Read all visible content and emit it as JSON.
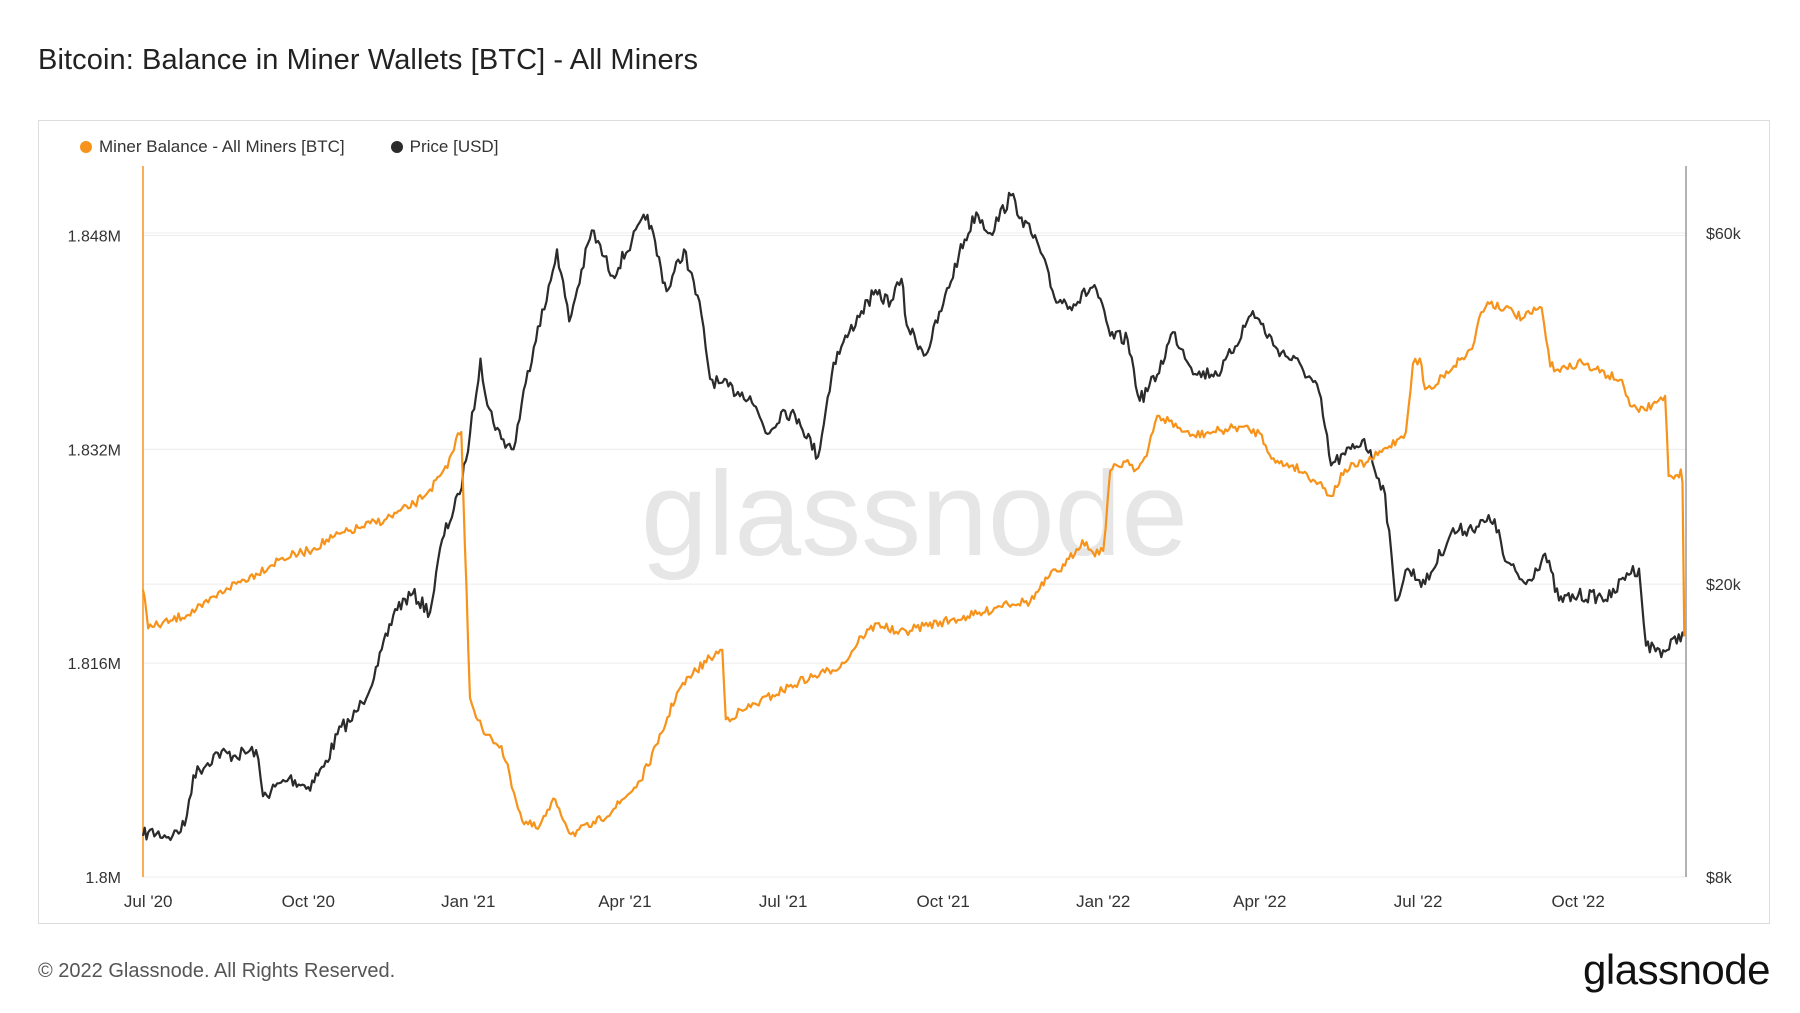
{
  "title": "Bitcoin: Balance in Miner Wallets [BTC] - All Miners",
  "footer": {
    "copyright": "© 2022 Glassnode. All Rights Reserved.",
    "brand": "glassnode",
    "watermark": "glassnode"
  },
  "colors": {
    "balance": "#f7931a",
    "price": "#2b2b2b",
    "grid": "#ececec"
  },
  "chart_data": {
    "type": "line",
    "title": "Bitcoin: Balance in Miner Wallets [BTC] - All Miners",
    "legend_position": "top-left",
    "grid": true,
    "x_ticks": [
      "Jul '20",
      "Oct '20",
      "Jan '21",
      "Apr '21",
      "Jul '21",
      "Oct '21",
      "Jan '22",
      "Apr '22",
      "Jul '22",
      "Oct '22"
    ],
    "x_tick_dates": [
      "2020-07-01",
      "2020-10-01",
      "2021-01-01",
      "2021-04-01",
      "2021-07-01",
      "2021-10-01",
      "2022-01-01",
      "2022-04-01",
      "2022-07-01",
      "2022-10-01"
    ],
    "xlim": [
      "2020-06-28",
      "2022-12-02"
    ],
    "y_left": {
      "ticks": [
        "1.8M",
        "1.816M",
        "1.832M",
        "1.848M"
      ],
      "tick_values": [
        1800000,
        1816000,
        1832000,
        1848000
      ],
      "lim": [
        1800000,
        1853200
      ]
    },
    "y_right": {
      "ticks": [
        "$8k",
        "$20k",
        "$60k"
      ],
      "tick_values": [
        8000,
        20000,
        60000
      ],
      "scale": "log",
      "lim": [
        8000,
        74000
      ]
    },
    "series": [
      {
        "name": "Miner Balance - All Miners [BTC]",
        "axis": "left",
        "points": [
          [
            "2020-06-28",
            1821500
          ],
          [
            "2020-06-29",
            1820900
          ],
          [
            "2020-07-01",
            1818600
          ],
          [
            "2020-07-15",
            1819200
          ],
          [
            "2020-08-01",
            1820200
          ],
          [
            "2020-08-15",
            1821600
          ],
          [
            "2020-09-01",
            1822700
          ],
          [
            "2020-09-15",
            1823800
          ],
          [
            "2020-10-01",
            1824400
          ],
          [
            "2020-10-15",
            1825400
          ],
          [
            "2020-11-01",
            1826200
          ],
          [
            "2020-11-15",
            1826800
          ],
          [
            "2020-12-01",
            1827900
          ],
          [
            "2020-12-10",
            1829000
          ],
          [
            "2020-12-20",
            1830600
          ],
          [
            "2020-12-25",
            1832800
          ],
          [
            "2020-12-28",
            1833300
          ],
          [
            "2020-12-30",
            1825000
          ],
          [
            "2021-01-02",
            1813400
          ],
          [
            "2021-01-10",
            1810700
          ],
          [
            "2021-01-20",
            1809800
          ],
          [
            "2021-02-01",
            1804200
          ],
          [
            "2021-02-10",
            1803600
          ],
          [
            "2021-02-20",
            1805800
          ],
          [
            "2021-03-01",
            1803200
          ],
          [
            "2021-03-15",
            1804000
          ],
          [
            "2021-03-29",
            1805500
          ],
          [
            "2021-04-10",
            1807200
          ],
          [
            "2021-04-20",
            1810000
          ],
          [
            "2021-05-01",
            1813800
          ],
          [
            "2021-05-10",
            1815200
          ],
          [
            "2021-05-20",
            1816400
          ],
          [
            "2021-05-27",
            1817000
          ],
          [
            "2021-05-29",
            1811800
          ],
          [
            "2021-06-10",
            1812600
          ],
          [
            "2021-06-25",
            1813600
          ],
          [
            "2021-07-10",
            1814600
          ],
          [
            "2021-07-25",
            1815300
          ],
          [
            "2021-08-05",
            1816000
          ],
          [
            "2021-08-15",
            1818000
          ],
          [
            "2021-08-25",
            1819000
          ],
          [
            "2021-09-05",
            1818200
          ],
          [
            "2021-09-20",
            1818800
          ],
          [
            "2021-10-05",
            1819200
          ],
          [
            "2021-10-15",
            1819500
          ],
          [
            "2021-10-25",
            1819800
          ],
          [
            "2021-11-05",
            1820500
          ],
          [
            "2021-11-20",
            1820600
          ],
          [
            "2021-12-01",
            1822500
          ],
          [
            "2021-12-10",
            1823300
          ],
          [
            "2021-12-20",
            1825200
          ],
          [
            "2021-12-26",
            1824300
          ],
          [
            "2022-01-01",
            1824400
          ],
          [
            "2022-01-05",
            1830400
          ],
          [
            "2022-01-15",
            1831200
          ],
          [
            "2022-01-20",
            1830500
          ],
          [
            "2022-01-26",
            1831500
          ],
          [
            "2022-02-01",
            1834500
          ],
          [
            "2022-02-08",
            1834100
          ],
          [
            "2022-02-20",
            1833000
          ],
          [
            "2022-03-01",
            1833200
          ],
          [
            "2022-03-10",
            1833400
          ],
          [
            "2022-03-20",
            1833700
          ],
          [
            "2022-04-01",
            1833200
          ],
          [
            "2022-04-10",
            1831000
          ],
          [
            "2022-04-20",
            1830800
          ],
          [
            "2022-05-05",
            1829500
          ],
          [
            "2022-05-12",
            1828500
          ],
          [
            "2022-05-20",
            1830500
          ],
          [
            "2022-06-01",
            1831000
          ],
          [
            "2022-06-10",
            1831800
          ],
          [
            "2022-06-20",
            1832800
          ],
          [
            "2022-06-24",
            1833300
          ],
          [
            "2022-06-28",
            1838400
          ],
          [
            "2022-07-02",
            1838800
          ],
          [
            "2022-07-05",
            1836500
          ],
          [
            "2022-07-10",
            1836600
          ],
          [
            "2022-07-15",
            1837500
          ],
          [
            "2022-07-25",
            1838700
          ],
          [
            "2022-08-01",
            1839500
          ],
          [
            "2022-08-05",
            1841800
          ],
          [
            "2022-08-10",
            1843000
          ],
          [
            "2022-08-20",
            1842600
          ],
          [
            "2022-08-30",
            1841800
          ],
          [
            "2022-09-10",
            1842600
          ],
          [
            "2022-09-15",
            1838200
          ],
          [
            "2022-09-25",
            1838000
          ],
          [
            "2022-10-01",
            1838600
          ],
          [
            "2022-10-10",
            1838000
          ],
          [
            "2022-10-25",
            1837200
          ],
          [
            "2022-11-01",
            1835200
          ],
          [
            "2022-11-05",
            1834800
          ],
          [
            "2022-11-15",
            1835500
          ],
          [
            "2022-11-20",
            1836000
          ],
          [
            "2022-11-22",
            1830000
          ],
          [
            "2022-11-25",
            1829800
          ],
          [
            "2022-11-28",
            1829900
          ],
          [
            "2022-11-29",
            1830500
          ],
          [
            "2022-11-30",
            1829500
          ],
          [
            "2022-12-01",
            1818000
          ]
        ]
      },
      {
        "name": "Price [USD]",
        "axis": "right",
        "points": [
          [
            "2020-06-28",
            9100
          ],
          [
            "2020-07-01",
            9200
          ],
          [
            "2020-07-15",
            9100
          ],
          [
            "2020-07-22",
            9400
          ],
          [
            "2020-07-27",
            11000
          ],
          [
            "2020-08-10",
            11800
          ],
          [
            "2020-08-20",
            11700
          ],
          [
            "2020-09-01",
            11900
          ],
          [
            "2020-09-05",
            10300
          ],
          [
            "2020-09-20",
            10900
          ],
          [
            "2020-10-01",
            10600
          ],
          [
            "2020-10-10",
            11300
          ],
          [
            "2020-10-20",
            12800
          ],
          [
            "2020-10-25",
            13000
          ],
          [
            "2020-11-01",
            13800
          ],
          [
            "2020-11-10",
            15500
          ],
          [
            "2020-11-20",
            18500
          ],
          [
            "2020-11-30",
            19400
          ],
          [
            "2020-12-10",
            18300
          ],
          [
            "2020-12-17",
            23000
          ],
          [
            "2020-12-27",
            26500
          ],
          [
            "2021-01-02",
            32000
          ],
          [
            "2021-01-08",
            40500
          ],
          [
            "2021-01-12",
            35000
          ],
          [
            "2021-01-20",
            31500
          ],
          [
            "2021-01-27",
            30500
          ],
          [
            "2021-02-03",
            37500
          ],
          [
            "2021-02-10",
            44800
          ],
          [
            "2021-02-15",
            48500
          ],
          [
            "2021-02-21",
            57000
          ],
          [
            "2021-02-28",
            45500
          ],
          [
            "2021-03-13",
            60500
          ],
          [
            "2021-03-25",
            52500
          ],
          [
            "2021-04-05",
            58500
          ],
          [
            "2021-04-14",
            63500
          ],
          [
            "2021-04-25",
            50000
          ],
          [
            "2021-05-05",
            57000
          ],
          [
            "2021-05-15",
            46500
          ],
          [
            "2021-05-20",
            38000
          ],
          [
            "2021-05-25",
            37500
          ],
          [
            "2021-06-05",
            36500
          ],
          [
            "2021-06-12",
            36000
          ],
          [
            "2021-06-22",
            32000
          ],
          [
            "2021-07-01",
            34500
          ],
          [
            "2021-07-10",
            33500
          ],
          [
            "2021-07-21",
            29800
          ],
          [
            "2021-07-30",
            40000
          ],
          [
            "2021-08-08",
            44000
          ],
          [
            "2021-08-15",
            47000
          ],
          [
            "2021-08-22",
            49500
          ],
          [
            "2021-09-01",
            48500
          ],
          [
            "2021-09-07",
            52000
          ],
          [
            "2021-09-10",
            45000
          ],
          [
            "2021-09-21",
            41000
          ],
          [
            "2021-10-01",
            48000
          ],
          [
            "2021-10-10",
            56000
          ],
          [
            "2021-10-20",
            64000
          ],
          [
            "2021-10-28",
            60000
          ],
          [
            "2021-11-09",
            67500
          ],
          [
            "2021-11-15",
            63000
          ],
          [
            "2021-11-25",
            57500
          ],
          [
            "2021-12-04",
            49000
          ],
          [
            "2021-12-15",
            48000
          ],
          [
            "2021-12-27",
            51000
          ],
          [
            "2022-01-05",
            43500
          ],
          [
            "2022-01-15",
            43000
          ],
          [
            "2022-01-22",
            35500
          ],
          [
            "2022-02-01",
            38500
          ],
          [
            "2022-02-10",
            44000
          ],
          [
            "2022-02-24",
            38500
          ],
          [
            "2022-03-10",
            39000
          ],
          [
            "2022-03-28",
            47000
          ],
          [
            "2022-04-10",
            42000
          ],
          [
            "2022-04-25",
            39500
          ],
          [
            "2022-05-05",
            36500
          ],
          [
            "2022-05-12",
            29000
          ],
          [
            "2022-05-20",
            30000
          ],
          [
            "2022-05-31",
            31500
          ],
          [
            "2022-06-12",
            26500
          ],
          [
            "2022-06-18",
            19000
          ],
          [
            "2022-06-25",
            21000
          ],
          [
            "2022-07-05",
            20000
          ],
          [
            "2022-07-20",
            23500
          ],
          [
            "2022-07-30",
            23800
          ],
          [
            "2022-08-14",
            24500
          ],
          [
            "2022-08-20",
            21500
          ],
          [
            "2022-09-01",
            20000
          ],
          [
            "2022-09-12",
            22000
          ],
          [
            "2022-09-20",
            19000
          ],
          [
            "2022-10-01",
            19300
          ],
          [
            "2022-10-20",
            19200
          ],
          [
            "2022-10-29",
            20700
          ],
          [
            "2022-11-05",
            21000
          ],
          [
            "2022-11-09",
            16500
          ],
          [
            "2022-11-20",
            16200
          ],
          [
            "2022-11-30",
            17200
          ],
          [
            "2022-12-01",
            17000
          ]
        ]
      }
    ]
  }
}
